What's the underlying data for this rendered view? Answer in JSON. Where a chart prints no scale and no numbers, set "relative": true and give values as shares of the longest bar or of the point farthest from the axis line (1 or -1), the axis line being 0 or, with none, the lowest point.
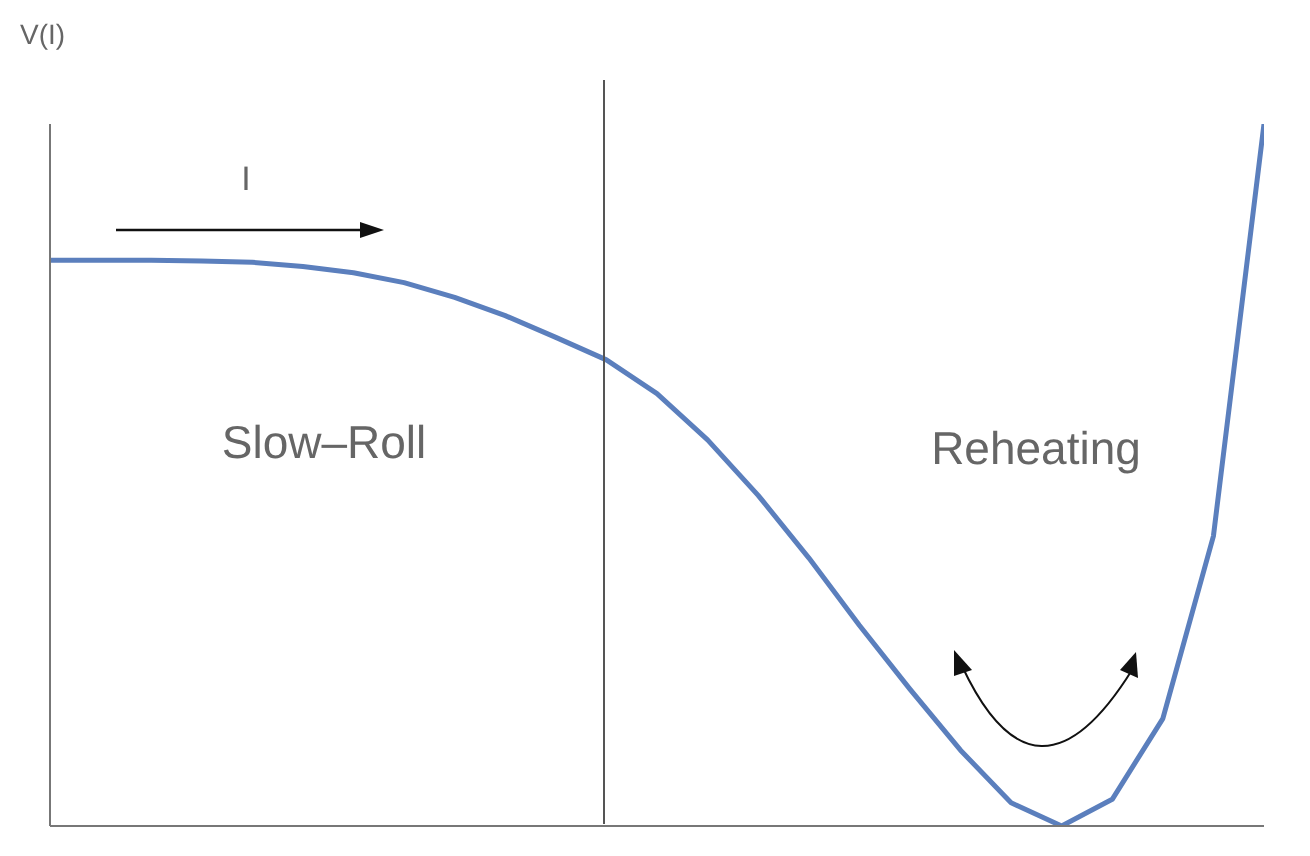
{
  "chart_data": {
    "type": "line",
    "relative": true,
    "ylabel": "V(I)",
    "categories": [
      null,
      null,
      null,
      null,
      null,
      null,
      null,
      null,
      null,
      null,
      null,
      null,
      null,
      null,
      null,
      null,
      null,
      null,
      null,
      null,
      null,
      null,
      null,
      null,
      null
    ],
    "series": [
      {
        "color": "#5b7fbd",
        "values": [
          0.806,
          0.806,
          0.806,
          0.805,
          0.803,
          0.797,
          0.788,
          0.774,
          0.753,
          0.727,
          0.696,
          0.664,
          0.616,
          0.55,
          0.471,
          0.382,
          0.286,
          0.195,
          0.108,
          0.033,
          0,
          0.038,
          0.153,
          0.413,
          1
        ]
      }
    ],
    "annotations": [
      "I",
      "Slow–Roll",
      "Reheating"
    ]
  }
}
